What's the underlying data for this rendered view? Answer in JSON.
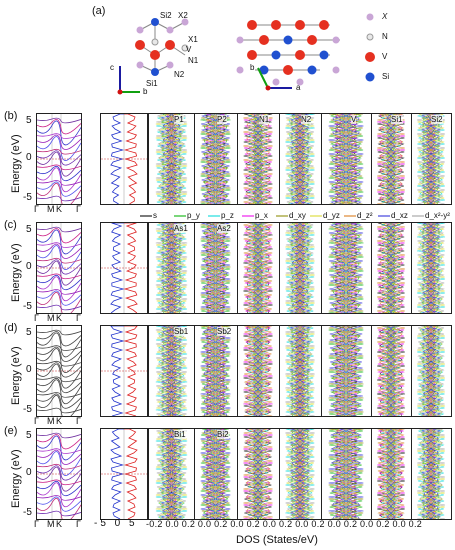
{
  "header": {
    "panel_a": "(a)"
  },
  "structure": {
    "side_labels": {
      "si2": "Si2",
      "x2": "X2",
      "x1": "X1",
      "v": "V",
      "n1": "N1",
      "n2": "N2",
      "si1": "Si1"
    },
    "axes_side": {
      "c": "c",
      "b": "b"
    },
    "axes_top": {
      "b": "b",
      "a": "a"
    },
    "legend": [
      {
        "symbol": "X",
        "color": "#c9a6d6"
      },
      {
        "symbol": "N",
        "color": "#e8e8e8"
      },
      {
        "symbol": "V",
        "color": "#e53020"
      },
      {
        "symbol": "Si",
        "color": "#2050d0"
      }
    ]
  },
  "rows": [
    {
      "label": "(b)",
      "ylabel": "Energy (eV)",
      "yticks": [
        "5",
        "0",
        "-5"
      ],
      "subs": [
        "P1",
        "P2",
        "N1",
        "N2",
        "V",
        "Si1",
        "Si2"
      ]
    },
    {
      "label": "(c)",
      "ylabel": "Energy (eV)",
      "yticks": [
        "5",
        "0",
        "-5"
      ],
      "subs": [
        "As1",
        "As2",
        "",
        "",
        "",
        "",
        ""
      ]
    },
    {
      "label": "(d)",
      "ylabel": "Energy (eV)",
      "yticks": [
        "5",
        "0",
        "-5"
      ],
      "subs": [
        "Sb1",
        "Sb2",
        "",
        "",
        "",
        "",
        ""
      ]
    },
    {
      "label": "(e)",
      "ylabel": "Energy (eV)",
      "yticks": [
        "5",
        "0",
        "-5"
      ],
      "subs": [
        "Bi1",
        "Bi2",
        "",
        "",
        "",
        "",
        ""
      ]
    }
  ],
  "kpath": [
    "Γ",
    "M",
    "K",
    "Γ"
  ],
  "orbital_legend": [
    {
      "name": "s",
      "color": "#222222"
    },
    {
      "name": "p_y",
      "color": "#22bb22"
    },
    {
      "name": "p_z",
      "color": "#22dddd"
    },
    {
      "name": "p_x",
      "color": "#ee22ee"
    },
    {
      "name": "d_xy",
      "color": "#999922"
    },
    {
      "name": "d_yz",
      "color": "#dddd44"
    },
    {
      "name": "d_z²",
      "color": "#dd8833"
    },
    {
      "name": "d_xz",
      "color": "#4444dd"
    },
    {
      "name": "d_x²-y²",
      "color": "#aaaaaa"
    }
  ],
  "bottom_axis": {
    "total_ticks": "-5 0 5",
    "pdos_ticks": "-0.2 0.0 0.2 0.0 0.2 0.0 0.2 0.0 0.2 0.0 0.2 0.0 0.2 0.0 0.2 0.0 0.2",
    "xlabel": "DOS (States/eV)"
  }
}
